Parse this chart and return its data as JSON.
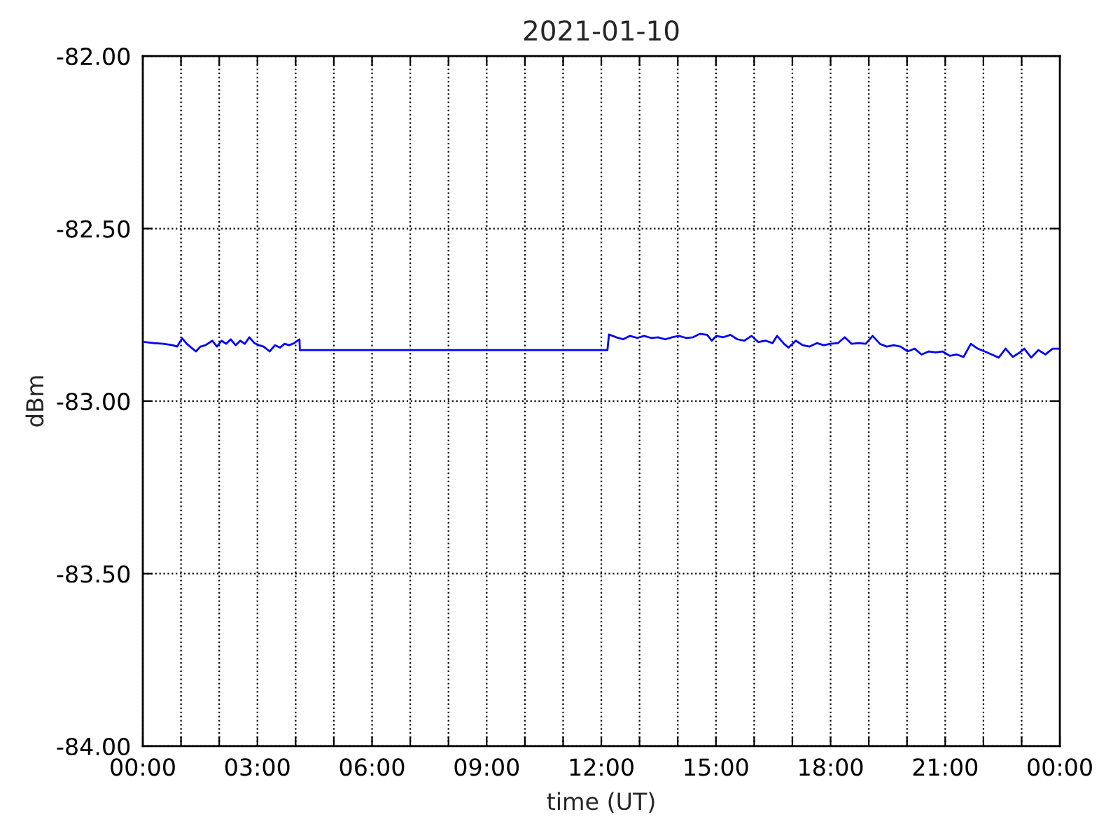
{
  "chart_data": {
    "type": "line",
    "title": "2021-01-10",
    "xlabel": "time (UT)",
    "ylabel": "dBm",
    "x": [
      0.05,
      0.29,
      0.54,
      0.78,
      0.9,
      1.03,
      1.15,
      1.27,
      1.39,
      1.51,
      1.64,
      1.82,
      1.94,
      2.06,
      2.18,
      2.3,
      2.43,
      2.55,
      2.67,
      2.79,
      2.92,
      3.04,
      3.16,
      3.32,
      3.46,
      3.59,
      3.71,
      3.83,
      3.96,
      4.1,
      4.11,
      12.16,
      12.2,
      12.39,
      12.57,
      12.75,
      12.94,
      13.12,
      13.3,
      13.48,
      13.67,
      13.85,
      14.03,
      14.22,
      14.4,
      14.58,
      14.77,
      14.89,
      15.01,
      15.19,
      15.38,
      15.56,
      15.74,
      15.93,
      16.11,
      16.3,
      16.48,
      16.6,
      16.78,
      16.9,
      17.09,
      17.27,
      17.45,
      17.64,
      17.82,
      18.0,
      18.19,
      18.37,
      18.55,
      18.74,
      18.92,
      19.1,
      19.29,
      19.47,
      19.65,
      19.83,
      20.02,
      20.2,
      20.38,
      20.57,
      20.75,
      20.93,
      21.12,
      21.3,
      21.48,
      21.67,
      21.85,
      22.03,
      22.22,
      22.4,
      22.58,
      22.77,
      22.95,
      23.07,
      23.25,
      23.44,
      23.62,
      23.81,
      23.99
    ],
    "series": [
      {
        "color": "#0000ff",
        "values": [
          -82.829,
          -82.832,
          -82.834,
          -82.838,
          -82.842,
          -82.818,
          -82.834,
          -82.845,
          -82.856,
          -82.842,
          -82.838,
          -82.825,
          -82.842,
          -82.825,
          -82.834,
          -82.821,
          -82.838,
          -82.825,
          -82.834,
          -82.815,
          -82.832,
          -82.838,
          -82.842,
          -82.856,
          -82.838,
          -82.845,
          -82.834,
          -82.838,
          -82.832,
          -82.821,
          -82.852,
          -82.852,
          -82.807,
          -82.815,
          -82.821,
          -82.811,
          -82.817,
          -82.811,
          -82.817,
          -82.815,
          -82.821,
          -82.815,
          -82.811,
          -82.817,
          -82.815,
          -82.805,
          -82.808,
          -82.825,
          -82.811,
          -82.815,
          -82.808,
          -82.821,
          -82.825,
          -82.811,
          -82.829,
          -82.825,
          -82.832,
          -82.811,
          -82.834,
          -82.845,
          -82.825,
          -82.838,
          -82.842,
          -82.832,
          -82.838,
          -82.834,
          -82.832,
          -82.815,
          -82.834,
          -82.832,
          -82.834,
          -82.811,
          -82.834,
          -82.842,
          -82.838,
          -82.842,
          -82.856,
          -82.848,
          -82.865,
          -82.856,
          -82.859,
          -82.856,
          -82.869,
          -82.865,
          -82.872,
          -82.834,
          -82.848,
          -82.856,
          -82.865,
          -82.874,
          -82.848,
          -82.872,
          -82.859,
          -82.848,
          -82.874,
          -82.852,
          -82.865,
          -82.848,
          -82.848
        ]
      }
    ],
    "xlim": [
      0,
      24
    ],
    "xticks": [
      {
        "value": 0,
        "label": "00:00"
      },
      {
        "value": 1,
        "label": null
      },
      {
        "value": 2,
        "label": null
      },
      {
        "value": 3,
        "label": "03:00"
      },
      {
        "value": 4,
        "label": null
      },
      {
        "value": 5,
        "label": null
      },
      {
        "value": 6,
        "label": "06:00"
      },
      {
        "value": 7,
        "label": null
      },
      {
        "value": 8,
        "label": null
      },
      {
        "value": 9,
        "label": "09:00"
      },
      {
        "value": 10,
        "label": null
      },
      {
        "value": 11,
        "label": null
      },
      {
        "value": 12,
        "label": "12:00"
      },
      {
        "value": 13,
        "label": null
      },
      {
        "value": 14,
        "label": null
      },
      {
        "value": 15,
        "label": "15:00"
      },
      {
        "value": 16,
        "label": null
      },
      {
        "value": 17,
        "label": null
      },
      {
        "value": 18,
        "label": "18:00"
      },
      {
        "value": 19,
        "label": null
      },
      {
        "value": 20,
        "label": null
      },
      {
        "value": 21,
        "label": "21:00"
      },
      {
        "value": 22,
        "label": null
      },
      {
        "value": 23,
        "label": null
      },
      {
        "value": 24,
        "label": "00:00"
      }
    ],
    "ylim": [
      -84,
      -82
    ],
    "yticks": [
      {
        "value": -84,
        "label": "-84.00"
      },
      {
        "value": -83.5,
        "label": "-83.50"
      },
      {
        "value": -83,
        "label": "-83.00"
      },
      {
        "value": -82.5,
        "label": "-82.50"
      },
      {
        "value": -82,
        "label": "-82.00"
      }
    ],
    "grid": true,
    "line_style": "solid",
    "marker": "none"
  }
}
